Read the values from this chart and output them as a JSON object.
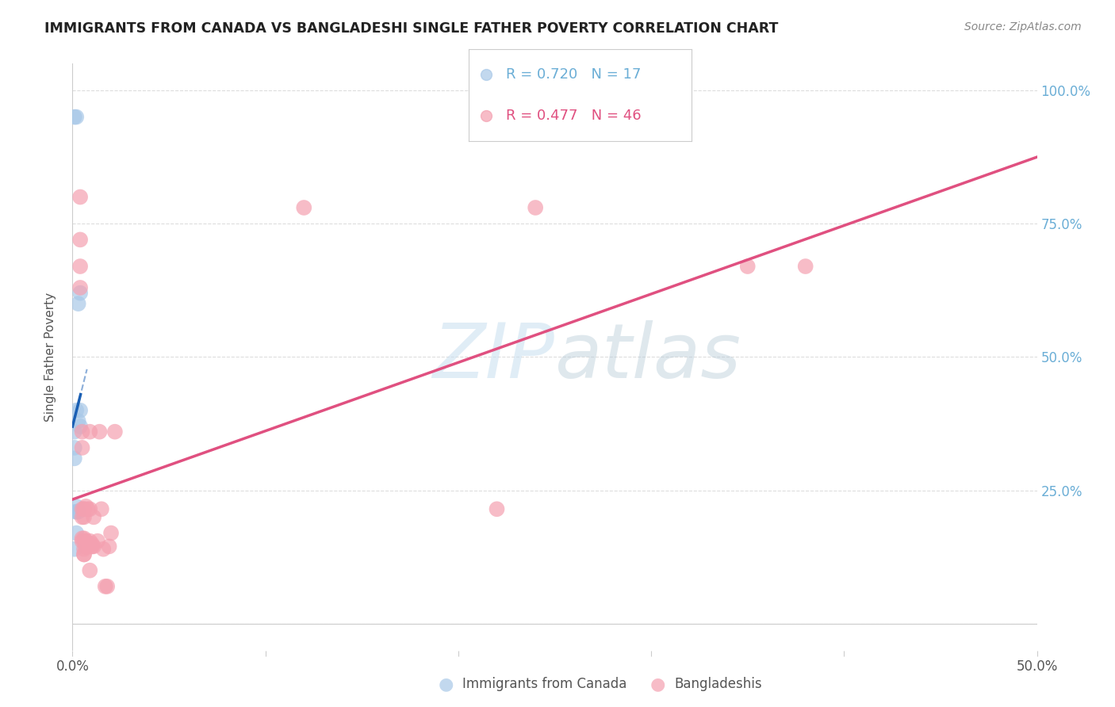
{
  "title": "IMMIGRANTS FROM CANADA VS BANGLADESHI SINGLE FATHER POVERTY CORRELATION CHART",
  "source": "Source: ZipAtlas.com",
  "ylabel": "Single Father Poverty",
  "legend_canada": {
    "R": 0.72,
    "N": 17,
    "color": "#a8c8e8"
  },
  "legend_bangladeshi": {
    "R": 0.477,
    "N": 46,
    "color": "#f4a0b0"
  },
  "watermark": "ZIPatlas",
  "canada_points": [
    [
      0.001,
      0.95
    ],
    [
      0.002,
      0.95
    ],
    [
      0.003,
      0.6
    ],
    [
      0.004,
      0.62
    ],
    [
      0.004,
      0.4
    ],
    [
      0.004,
      0.37
    ],
    [
      0.001,
      0.36
    ],
    [
      0.001,
      0.31
    ],
    [
      0.001,
      0.33
    ],
    [
      0.002,
      0.4
    ],
    [
      0.002,
      0.21
    ],
    [
      0.002,
      0.22
    ],
    [
      0.002,
      0.21
    ],
    [
      0.003,
      0.21
    ],
    [
      0.002,
      0.17
    ],
    [
      0.001,
      0.14
    ],
    [
      0.003,
      0.38
    ]
  ],
  "bangladeshi_points": [
    [
      0.004,
      0.8
    ],
    [
      0.004,
      0.72
    ],
    [
      0.004,
      0.67
    ],
    [
      0.004,
      0.63
    ],
    [
      0.005,
      0.36
    ],
    [
      0.005,
      0.33
    ],
    [
      0.005,
      0.215
    ],
    [
      0.005,
      0.2
    ],
    [
      0.005,
      0.16
    ],
    [
      0.005,
      0.155
    ],
    [
      0.006,
      0.155
    ],
    [
      0.006,
      0.14
    ],
    [
      0.006,
      0.13
    ],
    [
      0.006,
      0.215
    ],
    [
      0.006,
      0.215
    ],
    [
      0.006,
      0.2
    ],
    [
      0.006,
      0.16
    ],
    [
      0.006,
      0.13
    ],
    [
      0.007,
      0.22
    ],
    [
      0.007,
      0.155
    ],
    [
      0.007,
      0.145
    ],
    [
      0.007,
      0.145
    ],
    [
      0.008,
      0.215
    ],
    [
      0.009,
      0.215
    ],
    [
      0.009,
      0.36
    ],
    [
      0.009,
      0.155
    ],
    [
      0.009,
      0.1
    ],
    [
      0.01,
      0.15
    ],
    [
      0.01,
      0.145
    ],
    [
      0.01,
      0.145
    ],
    [
      0.011,
      0.2
    ],
    [
      0.011,
      0.145
    ],
    [
      0.013,
      0.155
    ],
    [
      0.014,
      0.36
    ],
    [
      0.015,
      0.215
    ],
    [
      0.016,
      0.14
    ],
    [
      0.017,
      0.07
    ],
    [
      0.018,
      0.07
    ],
    [
      0.019,
      0.145
    ],
    [
      0.02,
      0.17
    ],
    [
      0.022,
      0.36
    ],
    [
      0.12,
      0.78
    ],
    [
      0.22,
      0.215
    ],
    [
      0.24,
      0.78
    ],
    [
      0.35,
      0.67
    ],
    [
      0.38,
      0.67
    ]
  ],
  "xlim": [
    0.0,
    0.5
  ],
  "ylim": [
    -0.05,
    1.05
  ],
  "plot_ylim": [
    0.0,
    1.0
  ],
  "bg_color": "#ffffff",
  "grid_color": "#dddddd",
  "canada_line_color": "#1a5fb4",
  "bangladeshi_line_color": "#e05080",
  "canada_line_xlim": [
    0.0,
    0.01
  ],
  "canada_dash_xlim": [
    0.003,
    0.012
  ]
}
